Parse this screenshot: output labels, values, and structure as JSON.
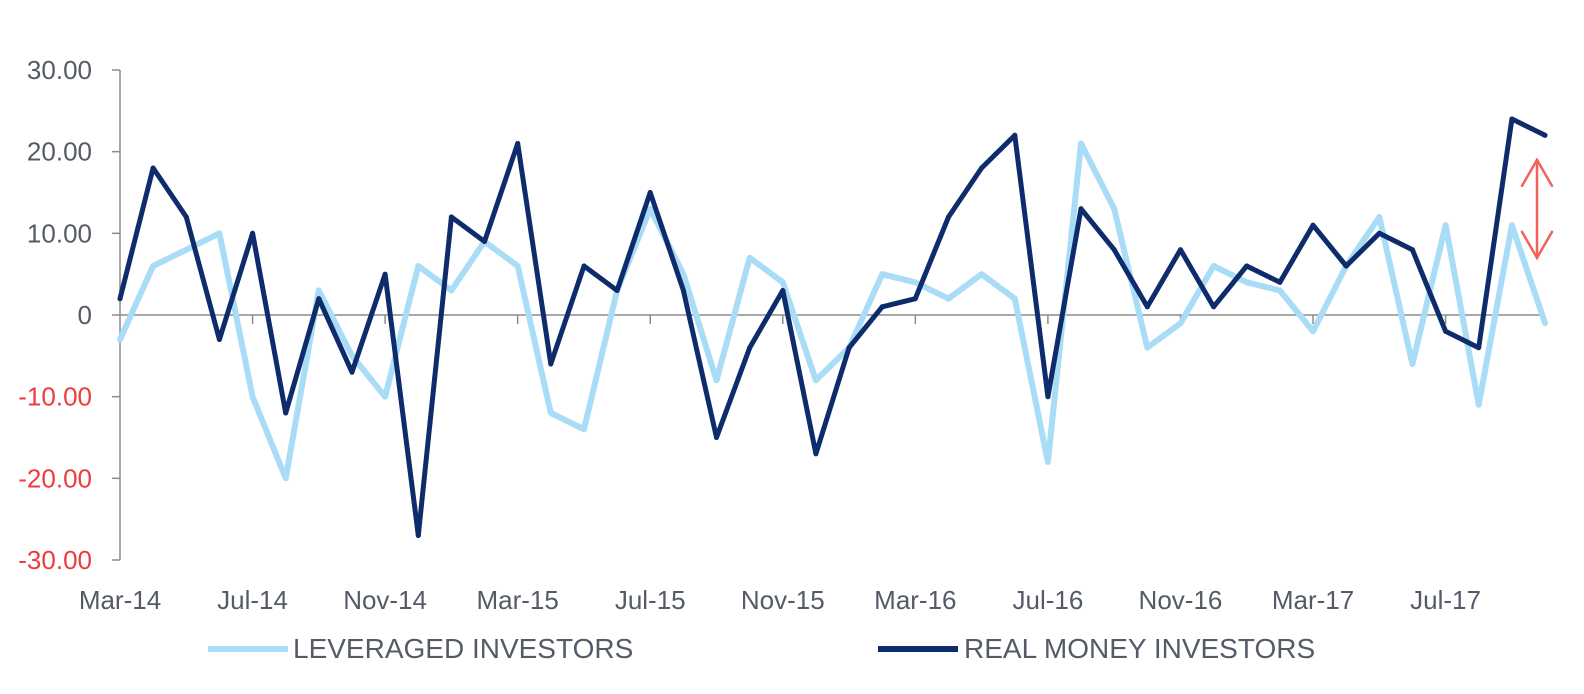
{
  "chart_data": {
    "type": "line",
    "title": "",
    "xlabel": "",
    "ylabel": "",
    "ylim": [
      -30,
      30
    ],
    "yticks": [
      {
        "value": 30,
        "label": "30.00"
      },
      {
        "value": 20,
        "label": "20.00"
      },
      {
        "value": 10,
        "label": "10.00"
      },
      {
        "value": 0,
        "label": "0"
      },
      {
        "value": -10,
        "label": "-10.00"
      },
      {
        "value": -20,
        "label": "-20.00"
      },
      {
        "value": -30,
        "label": "-30.00"
      }
    ],
    "xticks": [
      "Mar-14",
      "Jul-14",
      "Nov-14",
      "Mar-15",
      "Jul-15",
      "Nov-15",
      "Mar-16",
      "Jul-16",
      "Nov-16",
      "Mar-17",
      "Jul-17"
    ],
    "xrange": [
      "2014-03",
      "2017-10"
    ],
    "grid": false,
    "legend_position": "bottom",
    "series": [
      {
        "name": "LEVERAGED INVESTORS",
        "color": "#a9dcf6",
        "x": [
          "2014-03",
          "2014-04",
          "2014-05",
          "2014-06",
          "2014-07",
          "2014-08",
          "2014-09",
          "2014-10",
          "2014-11",
          "2014-12",
          "2015-01",
          "2015-02",
          "2015-03",
          "2015-04",
          "2015-05",
          "2015-06",
          "2015-07",
          "2015-08",
          "2015-09",
          "2015-10",
          "2015-11",
          "2015-12",
          "2016-01",
          "2016-02",
          "2016-03",
          "2016-04",
          "2016-05",
          "2016-06",
          "2016-07",
          "2016-08",
          "2016-09",
          "2016-10",
          "2016-11",
          "2016-12",
          "2017-01",
          "2017-02",
          "2017-03",
          "2017-04",
          "2017-05",
          "2017-06",
          "2017-07",
          "2017-08",
          "2017-09",
          "2017-10"
        ],
        "values": [
          -3,
          6,
          8,
          10,
          -10,
          -20,
          3,
          -5,
          -10,
          6,
          3,
          9,
          6,
          -12,
          -14,
          3,
          13,
          5,
          -8,
          7,
          4,
          -8,
          -4,
          5,
          4,
          2,
          5,
          2,
          -18,
          21,
          13,
          -4,
          -1,
          6,
          4,
          3,
          -2,
          6,
          12,
          -6,
          11,
          -11,
          11,
          -1
        ]
      },
      {
        "name": "REAL MONEY INVESTORS",
        "color": "#0e2c6b",
        "x": [
          "2014-03",
          "2014-04",
          "2014-05",
          "2014-06",
          "2014-07",
          "2014-08",
          "2014-09",
          "2014-10",
          "2014-11",
          "2014-12",
          "2015-01",
          "2015-02",
          "2015-03",
          "2015-04",
          "2015-05",
          "2015-06",
          "2015-07",
          "2015-08",
          "2015-09",
          "2015-10",
          "2015-11",
          "2015-12",
          "2016-01",
          "2016-02",
          "2016-03",
          "2016-04",
          "2016-05",
          "2016-06",
          "2016-07",
          "2016-08",
          "2016-09",
          "2016-10",
          "2016-11",
          "2016-12",
          "2017-01",
          "2017-02",
          "2017-03",
          "2017-04",
          "2017-05",
          "2017-06",
          "2017-07",
          "2017-08",
          "2017-09",
          "2017-10"
        ],
        "values": [
          2,
          18,
          12,
          -3,
          10,
          -12,
          2,
          -7,
          5,
          -27,
          12,
          9,
          21,
          -6,
          6,
          3,
          15,
          3,
          -15,
          -4,
          3,
          -17,
          -4,
          1,
          2,
          12,
          18,
          22,
          -10,
          13,
          8,
          1,
          8,
          1,
          6,
          4,
          11,
          6,
          10,
          8,
          -2,
          -4,
          24,
          22
        ]
      }
    ],
    "annotations": [
      {
        "type": "double-arrow",
        "color": "#f0625a",
        "x": "2017-10",
        "from": 19,
        "to": 7
      }
    ]
  }
}
